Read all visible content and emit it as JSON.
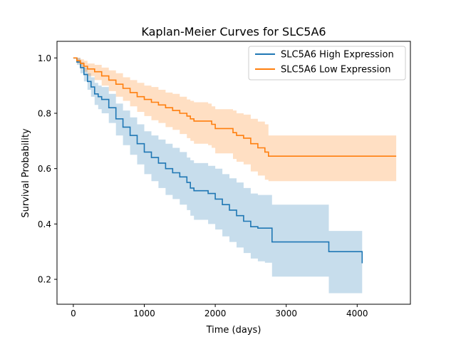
{
  "chart_data": {
    "type": "line",
    "title": "Kaplan-Meier Curves for SLC5A6",
    "xlabel": "Time (days)",
    "ylabel": "Survival Probability",
    "xlim": [
      -230,
      4750
    ],
    "ylim": [
      0.11,
      1.06
    ],
    "xticks": [
      0,
      1000,
      2000,
      3000,
      4000
    ],
    "xtick_labels": [
      "0",
      "1000",
      "2000",
      "3000",
      "4000"
    ],
    "yticks": [
      0.2,
      0.4,
      0.6,
      0.8,
      1.0
    ],
    "ytick_labels": [
      "0.2",
      "0.4",
      "0.6",
      "0.8",
      "1.0"
    ],
    "grid": false,
    "legend_position": "upper right",
    "series": [
      {
        "name": "SLC5A6 High Expression",
        "color": "#1f77b4",
        "x": [
          0,
          50,
          100,
          150,
          200,
          250,
          300,
          350,
          400,
          500,
          600,
          700,
          800,
          900,
          1000,
          1100,
          1200,
          1300,
          1400,
          1500,
          1600,
          1650,
          1700,
          1900,
          2000,
          2100,
          2200,
          2300,
          2400,
          2500,
          2600,
          2700,
          2800,
          3550,
          3600,
          4070
        ],
        "y": [
          1.0,
          0.985,
          0.965,
          0.94,
          0.915,
          0.895,
          0.87,
          0.86,
          0.85,
          0.82,
          0.78,
          0.75,
          0.72,
          0.69,
          0.66,
          0.64,
          0.62,
          0.6,
          0.585,
          0.57,
          0.55,
          0.53,
          0.52,
          0.51,
          0.49,
          0.47,
          0.45,
          0.43,
          0.41,
          0.39,
          0.385,
          0.385,
          0.335,
          0.335,
          0.3,
          0.258
        ],
        "ci_lower": [
          1.0,
          0.975,
          0.945,
          0.915,
          0.885,
          0.86,
          0.83,
          0.815,
          0.8,
          0.765,
          0.72,
          0.685,
          0.65,
          0.615,
          0.58,
          0.555,
          0.53,
          0.505,
          0.49,
          0.47,
          0.45,
          0.43,
          0.415,
          0.4,
          0.38,
          0.355,
          0.335,
          0.315,
          0.295,
          0.275,
          0.265,
          0.26,
          0.21,
          0.21,
          0.15,
          0.15
        ],
        "ci_upper": [
          1.0,
          1.0,
          0.985,
          0.965,
          0.945,
          0.93,
          0.91,
          0.9,
          0.895,
          0.87,
          0.835,
          0.81,
          0.785,
          0.76,
          0.735,
          0.72,
          0.705,
          0.69,
          0.675,
          0.66,
          0.64,
          0.63,
          0.62,
          0.61,
          0.6,
          0.58,
          0.565,
          0.55,
          0.53,
          0.51,
          0.505,
          0.505,
          0.47,
          0.47,
          0.375,
          0.375
        ]
      },
      {
        "name": "SLC5A6 Low Expression",
        "color": "#ff7f0e",
        "x": [
          0,
          50,
          100,
          150,
          200,
          300,
          400,
          500,
          600,
          700,
          800,
          900,
          1000,
          1100,
          1200,
          1300,
          1400,
          1500,
          1600,
          1650,
          1700,
          1900,
          1950,
          2000,
          2100,
          2250,
          2300,
          2400,
          2500,
          2600,
          2700,
          2750,
          4550
        ],
        "y": [
          1.0,
          0.99,
          0.98,
          0.97,
          0.96,
          0.95,
          0.935,
          0.92,
          0.905,
          0.89,
          0.875,
          0.86,
          0.85,
          0.84,
          0.83,
          0.82,
          0.81,
          0.8,
          0.79,
          0.78,
          0.772,
          0.772,
          0.76,
          0.745,
          0.745,
          0.73,
          0.72,
          0.71,
          0.69,
          0.675,
          0.66,
          0.645,
          0.645
        ],
        "ci_lower": [
          1.0,
          0.98,
          0.965,
          0.95,
          0.935,
          0.92,
          0.9,
          0.88,
          0.86,
          0.845,
          0.825,
          0.805,
          0.79,
          0.775,
          0.765,
          0.75,
          0.74,
          0.725,
          0.71,
          0.7,
          0.69,
          0.685,
          0.675,
          0.655,
          0.655,
          0.635,
          0.625,
          0.615,
          0.59,
          0.575,
          0.56,
          0.555,
          0.555
        ],
        "ci_upper": [
          1.0,
          1.0,
          0.995,
          0.99,
          0.98,
          0.975,
          0.965,
          0.955,
          0.945,
          0.93,
          0.92,
          0.91,
          0.9,
          0.895,
          0.885,
          0.875,
          0.87,
          0.86,
          0.85,
          0.845,
          0.84,
          0.835,
          0.825,
          0.815,
          0.815,
          0.81,
          0.8,
          0.795,
          0.78,
          0.77,
          0.76,
          0.72,
          0.72
        ]
      }
    ]
  }
}
